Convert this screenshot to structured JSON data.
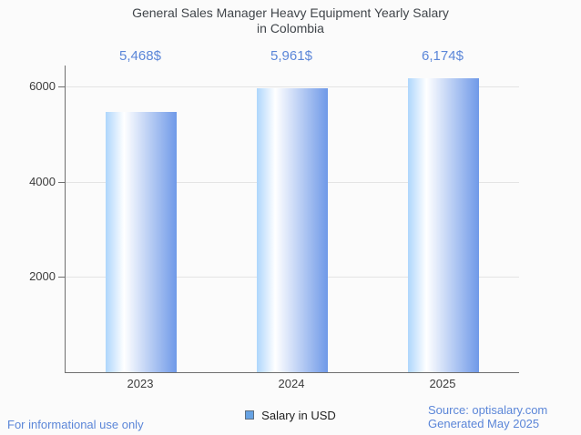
{
  "title": {
    "line1": "General Sales Manager Heavy Equipment Yearly Salary",
    "line2": "in Colombia"
  },
  "chart_data": {
    "type": "bar",
    "title": "General Sales Manager Heavy Equipment Yearly Salary in Colombia",
    "categories": [
      "2023",
      "2024",
      "2025"
    ],
    "values": [
      5468,
      5961,
      6174
    ],
    "value_labels": [
      "5,468$",
      "5,961$",
      "6,174$"
    ],
    "series": [
      {
        "name": "Salary in USD",
        "values": [
          5468,
          5961,
          6174
        ]
      }
    ],
    "xlabel": "",
    "ylabel": "",
    "yticks": [
      2000,
      4000,
      6000
    ],
    "ylim": [
      0,
      6440
    ],
    "grid": true,
    "legend_position": "bottom"
  },
  "legend": {
    "label": "Salary in USD"
  },
  "footer": {
    "left": "For informational use only",
    "source": "Source: optisalary.com",
    "generated": "Generated May 2025"
  },
  "colors": {
    "background": "#fbfbfb",
    "accent_blue_text": "#5b86d8",
    "bar_gradient_left": "#aed6fc",
    "bar_gradient_mid": "#ffffff",
    "bar_gradient_right": "#6f99e8",
    "legend_swatch_fill": "#66a2e3",
    "legend_swatch_border": "#5f6e7e",
    "gridline": "#e4e4e4",
    "axis": "#6f6f6f",
    "title_text": "#40454a",
    "tick_text": "#3c3c3c"
  }
}
